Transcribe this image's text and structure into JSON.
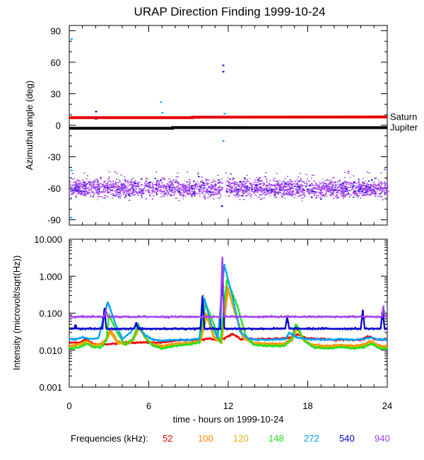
{
  "chart_data": [
    {
      "type": "scatter",
      "title": "URAP Direction Finding  1999-10-24",
      "xlabel": "",
      "ylabel": "Azimuthal angle (deg)",
      "xlim": [
        0,
        24
      ],
      "ylim": [
        -95,
        95
      ],
      "x_ticks": [
        0,
        6,
        12,
        18,
        24
      ],
      "y_ticks": [
        90,
        60,
        30,
        0,
        -30,
        -60,
        -90
      ],
      "y_tick_labels": [
        "90",
        "60",
        "30",
        "0",
        "-30",
        "-60",
        "-90"
      ],
      "reference_lines": [
        {
          "name": "Saturn",
          "color": "#e80000",
          "points": [
            [
              0,
              7.2
            ],
            [
              9.3,
              7.2
            ],
            [
              9.3,
              7.7
            ],
            [
              24,
              7.9
            ]
          ]
        },
        {
          "name": "Jupiter",
          "color": "#000000",
          "points": [
            [
              0,
              -2.8
            ],
            [
              7.8,
              -2.8
            ],
            [
              7.8,
              -2.2
            ],
            [
              24,
              -2.3
            ]
          ]
        }
      ],
      "scatter_band": {
        "color": "#a040f0",
        "second_color": "#0000d0",
        "center": -60,
        "halfwidth": 9,
        "gap_x": [
          11.5,
          11.8
        ]
      },
      "outliers": [
        {
          "x": 0.15,
          "y": 82,
          "color": "#00a0ff"
        },
        {
          "x": 0.15,
          "y": -43,
          "color": "#00a0ff"
        },
        {
          "x": 2.0,
          "y": 13,
          "color": "#0000d0"
        },
        {
          "x": 2.0,
          "y": 6,
          "color": "#0000d0"
        },
        {
          "x": 6.9,
          "y": 22,
          "color": "#00a0ff"
        },
        {
          "x": 7.0,
          "y": 12,
          "color": "#00a0ff"
        },
        {
          "x": 11.6,
          "y": 57,
          "color": "#0000d0"
        },
        {
          "x": 11.6,
          "y": 51,
          "color": "#0000d0"
        },
        {
          "x": 11.7,
          "y": 11,
          "color": "#00a0ff"
        },
        {
          "x": 11.6,
          "y": -15,
          "color": "#00a0ff"
        },
        {
          "x": 11.5,
          "y": -77,
          "color": "#0000d0"
        },
        {
          "x": 18.8,
          "y": -2,
          "color": "#00a0ff"
        },
        {
          "x": 23.8,
          "y": -42,
          "color": "#a040f0"
        },
        {
          "x": 0.1,
          "y": -88,
          "color": "#00a0ff"
        }
      ]
    },
    {
      "type": "line",
      "title": "",
      "xlabel": "time - hours on 1999-10-24",
      "ylabel": "Intensity (microvolt/sqrt(Hz))",
      "yscale": "log",
      "xlim": [
        0,
        24
      ],
      "ylim": [
        0.001,
        10
      ],
      "x_ticks": [
        0,
        6,
        12,
        18,
        24
      ],
      "y_ticks": [
        10,
        1,
        0.1,
        0.01,
        0.001
      ],
      "y_tick_labels": [
        "10.000",
        "1.000",
        "0.100",
        "0.010",
        "0.001"
      ],
      "series": [
        {
          "name": "52",
          "color": "#e80000",
          "points": [
            [
              0,
              0.016
            ],
            [
              0.8,
              0.016
            ],
            [
              1.2,
              0.02
            ],
            [
              1.8,
              0.015
            ],
            [
              2.6,
              0.014
            ],
            [
              3.4,
              0.015
            ],
            [
              4.2,
              0.016
            ],
            [
              5.0,
              0.016
            ],
            [
              6.0,
              0.016
            ],
            [
              7.0,
              0.016
            ],
            [
              8.0,
              0.018
            ],
            [
              9.0,
              0.019
            ],
            [
              10.0,
              0.019
            ],
            [
              10.5,
              0.021
            ],
            [
              11.0,
              0.019
            ],
            [
              11.6,
              0.02
            ],
            [
              12.3,
              0.028
            ],
            [
              12.9,
              0.02
            ],
            [
              13.8,
              0.02
            ],
            [
              15.0,
              0.02
            ],
            [
              16.5,
              0.021
            ],
            [
              17.2,
              0.027
            ],
            [
              17.8,
              0.021
            ],
            [
              19.0,
              0.02
            ],
            [
              20.0,
              0.019
            ],
            [
              21.0,
              0.019
            ],
            [
              22.0,
              0.019
            ],
            [
              22.5,
              0.024
            ],
            [
              23.0,
              0.02
            ],
            [
              23.5,
              0.019
            ],
            [
              24,
              0.02
            ]
          ]
        },
        {
          "name": "100",
          "color": "#ff8c00",
          "points": [
            [
              0,
              0.013
            ],
            [
              0.8,
              0.015
            ],
            [
              1.3,
              0.018
            ],
            [
              1.8,
              0.014
            ],
            [
              2.4,
              0.015
            ],
            [
              2.8,
              0.02
            ],
            [
              3.1,
              0.035
            ],
            [
              3.6,
              0.018
            ],
            [
              4.2,
              0.015
            ],
            [
              4.8,
              0.02
            ],
            [
              5.2,
              0.045
            ],
            [
              5.7,
              0.022
            ],
            [
              6.2,
              0.015
            ],
            [
              7.0,
              0.013
            ],
            [
              8.0,
              0.015
            ],
            [
              9.0,
              0.016
            ],
            [
              9.9,
              0.018
            ],
            [
              10.3,
              0.1
            ],
            [
              10.9,
              0.022
            ],
            [
              11.5,
              0.017
            ],
            [
              11.9,
              0.55
            ],
            [
              12.5,
              0.1
            ],
            [
              13.1,
              0.022
            ],
            [
              13.8,
              0.016
            ],
            [
              14.8,
              0.015
            ],
            [
              16.2,
              0.015
            ],
            [
              16.7,
              0.02
            ],
            [
              17.1,
              0.045
            ],
            [
              17.6,
              0.02
            ],
            [
              18.3,
              0.014
            ],
            [
              19.5,
              0.013
            ],
            [
              20.5,
              0.014
            ],
            [
              21.5,
              0.013
            ],
            [
              22.2,
              0.014
            ],
            [
              22.7,
              0.018
            ],
            [
              23.4,
              0.013
            ],
            [
              24,
              0.013
            ]
          ]
        },
        {
          "name": "120",
          "color": "#e0b000",
          "points": [
            [
              0,
              0.012
            ],
            [
              0.8,
              0.014
            ],
            [
              1.3,
              0.017
            ],
            [
              1.8,
              0.013
            ],
            [
              2.4,
              0.014
            ],
            [
              2.8,
              0.018
            ],
            [
              3.1,
              0.03
            ],
            [
              3.6,
              0.016
            ],
            [
              4.2,
              0.014
            ],
            [
              4.8,
              0.018
            ],
            [
              5.3,
              0.04
            ],
            [
              5.8,
              0.02
            ],
            [
              6.3,
              0.014
            ],
            [
              7.0,
              0.012
            ],
            [
              8.0,
              0.014
            ],
            [
              9.0,
              0.015
            ],
            [
              9.9,
              0.017
            ],
            [
              10.4,
              0.085
            ],
            [
              11.0,
              0.02
            ],
            [
              11.5,
              0.016
            ],
            [
              12.0,
              0.45
            ],
            [
              12.6,
              0.08
            ],
            [
              13.2,
              0.02
            ],
            [
              13.9,
              0.015
            ],
            [
              14.8,
              0.014
            ],
            [
              16.2,
              0.014
            ],
            [
              16.8,
              0.018
            ],
            [
              17.2,
              0.04
            ],
            [
              17.7,
              0.018
            ],
            [
              18.4,
              0.013
            ],
            [
              19.5,
              0.012
            ],
            [
              20.5,
              0.013
            ],
            [
              21.5,
              0.012
            ],
            [
              22.2,
              0.013
            ],
            [
              22.8,
              0.016
            ],
            [
              23.4,
              0.012
            ],
            [
              24,
              0.012
            ]
          ]
        },
        {
          "name": "148",
          "color": "#20e020",
          "points": [
            [
              0,
              0.011
            ],
            [
              0.8,
              0.012
            ],
            [
              1.3,
              0.015
            ],
            [
              1.8,
              0.012
            ],
            [
              2.4,
              0.012
            ],
            [
              2.8,
              0.018
            ],
            [
              3.0,
              0.09
            ],
            [
              3.6,
              0.03
            ],
            [
              4.2,
              0.014
            ],
            [
              4.8,
              0.02
            ],
            [
              5.2,
              0.05
            ],
            [
              5.8,
              0.02
            ],
            [
              6.3,
              0.013
            ],
            [
              7.0,
              0.011
            ],
            [
              8.0,
              0.013
            ],
            [
              9.0,
              0.014
            ],
            [
              9.8,
              0.016
            ],
            [
              10.3,
              0.18
            ],
            [
              10.9,
              0.05
            ],
            [
              11.4,
              0.016
            ],
            [
              11.9,
              0.8
            ],
            [
              12.7,
              0.15
            ],
            [
              13.3,
              0.025
            ],
            [
              13.9,
              0.014
            ],
            [
              14.8,
              0.013
            ],
            [
              16.2,
              0.013
            ],
            [
              16.8,
              0.02
            ],
            [
              17.1,
              0.05
            ],
            [
              17.8,
              0.017
            ],
            [
              18.4,
              0.012
            ],
            [
              19.5,
              0.011
            ],
            [
              20.5,
              0.012
            ],
            [
              21.5,
              0.011
            ],
            [
              22.2,
              0.012
            ],
            [
              22.8,
              0.015
            ],
            [
              23.4,
              0.011
            ],
            [
              24,
              0.011
            ]
          ]
        },
        {
          "name": "272",
          "color": "#00a0ff",
          "points": [
            [
              0,
              0.02
            ],
            [
              0.6,
              0.02
            ],
            [
              1.0,
              0.022
            ],
            [
              1.6,
              0.02
            ],
            [
              2.2,
              0.021
            ],
            [
              2.6,
              0.08
            ],
            [
              2.9,
              0.2
            ],
            [
              3.5,
              0.05
            ],
            [
              4.0,
              0.02
            ],
            [
              4.6,
              0.03
            ],
            [
              5.1,
              0.05
            ],
            [
              5.7,
              0.025
            ],
            [
              6.2,
              0.02
            ],
            [
              7.0,
              0.018
            ],
            [
              8.0,
              0.019
            ],
            [
              9.0,
              0.019
            ],
            [
              9.8,
              0.02
            ],
            [
              10.2,
              0.25
            ],
            [
              10.7,
              0.05
            ],
            [
              11.2,
              0.021
            ],
            [
              11.7,
              2.0
            ],
            [
              12.3,
              0.3
            ],
            [
              12.9,
              0.03
            ],
            [
              13.6,
              0.02
            ],
            [
              15.0,
              0.019
            ],
            [
              16.3,
              0.02
            ],
            [
              16.6,
              0.03
            ],
            [
              17.1,
              0.022
            ],
            [
              18.0,
              0.02
            ],
            [
              19.5,
              0.019
            ],
            [
              20.5,
              0.02
            ],
            [
              21.5,
              0.019
            ],
            [
              22.2,
              0.02
            ],
            [
              22.8,
              0.022
            ],
            [
              23.4,
              0.019
            ],
            [
              24,
              0.02
            ]
          ]
        },
        {
          "name": "540",
          "color": "#0000d0",
          "points": [
            [
              0,
              0.038
            ],
            [
              0.4,
              0.038
            ],
            [
              0.45,
              0.048
            ],
            [
              0.55,
              0.038
            ],
            [
              2.5,
              0.038
            ],
            [
              2.65,
              0.13
            ],
            [
              2.8,
              0.038
            ],
            [
              4.9,
              0.038
            ],
            [
              5.05,
              0.055
            ],
            [
              5.2,
              0.038
            ],
            [
              9.9,
              0.038
            ],
            [
              10.05,
              0.28
            ],
            [
              10.2,
              0.038
            ],
            [
              11.4,
              0.038
            ],
            [
              11.55,
              2.5
            ],
            [
              11.7,
              0.038
            ],
            [
              16.3,
              0.038
            ],
            [
              16.45,
              0.08
            ],
            [
              16.6,
              0.038
            ],
            [
              22.0,
              0.038
            ],
            [
              22.15,
              0.12
            ],
            [
              22.3,
              0.038
            ],
            [
              23.5,
              0.038
            ],
            [
              23.65,
              0.11
            ],
            [
              23.8,
              0.038
            ],
            [
              24,
              0.038
            ]
          ]
        },
        {
          "name": "940",
          "color": "#a040f0",
          "points": [
            [
              0,
              0.08
            ],
            [
              2.6,
              0.08
            ],
            [
              2.75,
              0.12
            ],
            [
              2.9,
              0.08
            ],
            [
              11.4,
              0.08
            ],
            [
              11.55,
              3.2
            ],
            [
              11.7,
              0.08
            ],
            [
              23.6,
              0.08
            ],
            [
              23.7,
              0.15
            ],
            [
              23.8,
              0.08
            ],
            [
              24,
              0.08
            ]
          ]
        }
      ]
    }
  ],
  "legend": {
    "label": "Frequencies (kHz):",
    "items": [
      {
        "text": "52",
        "color": "#e80000"
      },
      {
        "text": "100",
        "color": "#ff8c00"
      },
      {
        "text": "120",
        "color": "#e0b000"
      },
      {
        "text": "148",
        "color": "#20e020"
      },
      {
        "text": "272",
        "color": "#00a0ff"
      },
      {
        "text": "540",
        "color": "#0000d0"
      },
      {
        "text": "940",
        "color": "#a040f0"
      }
    ]
  }
}
